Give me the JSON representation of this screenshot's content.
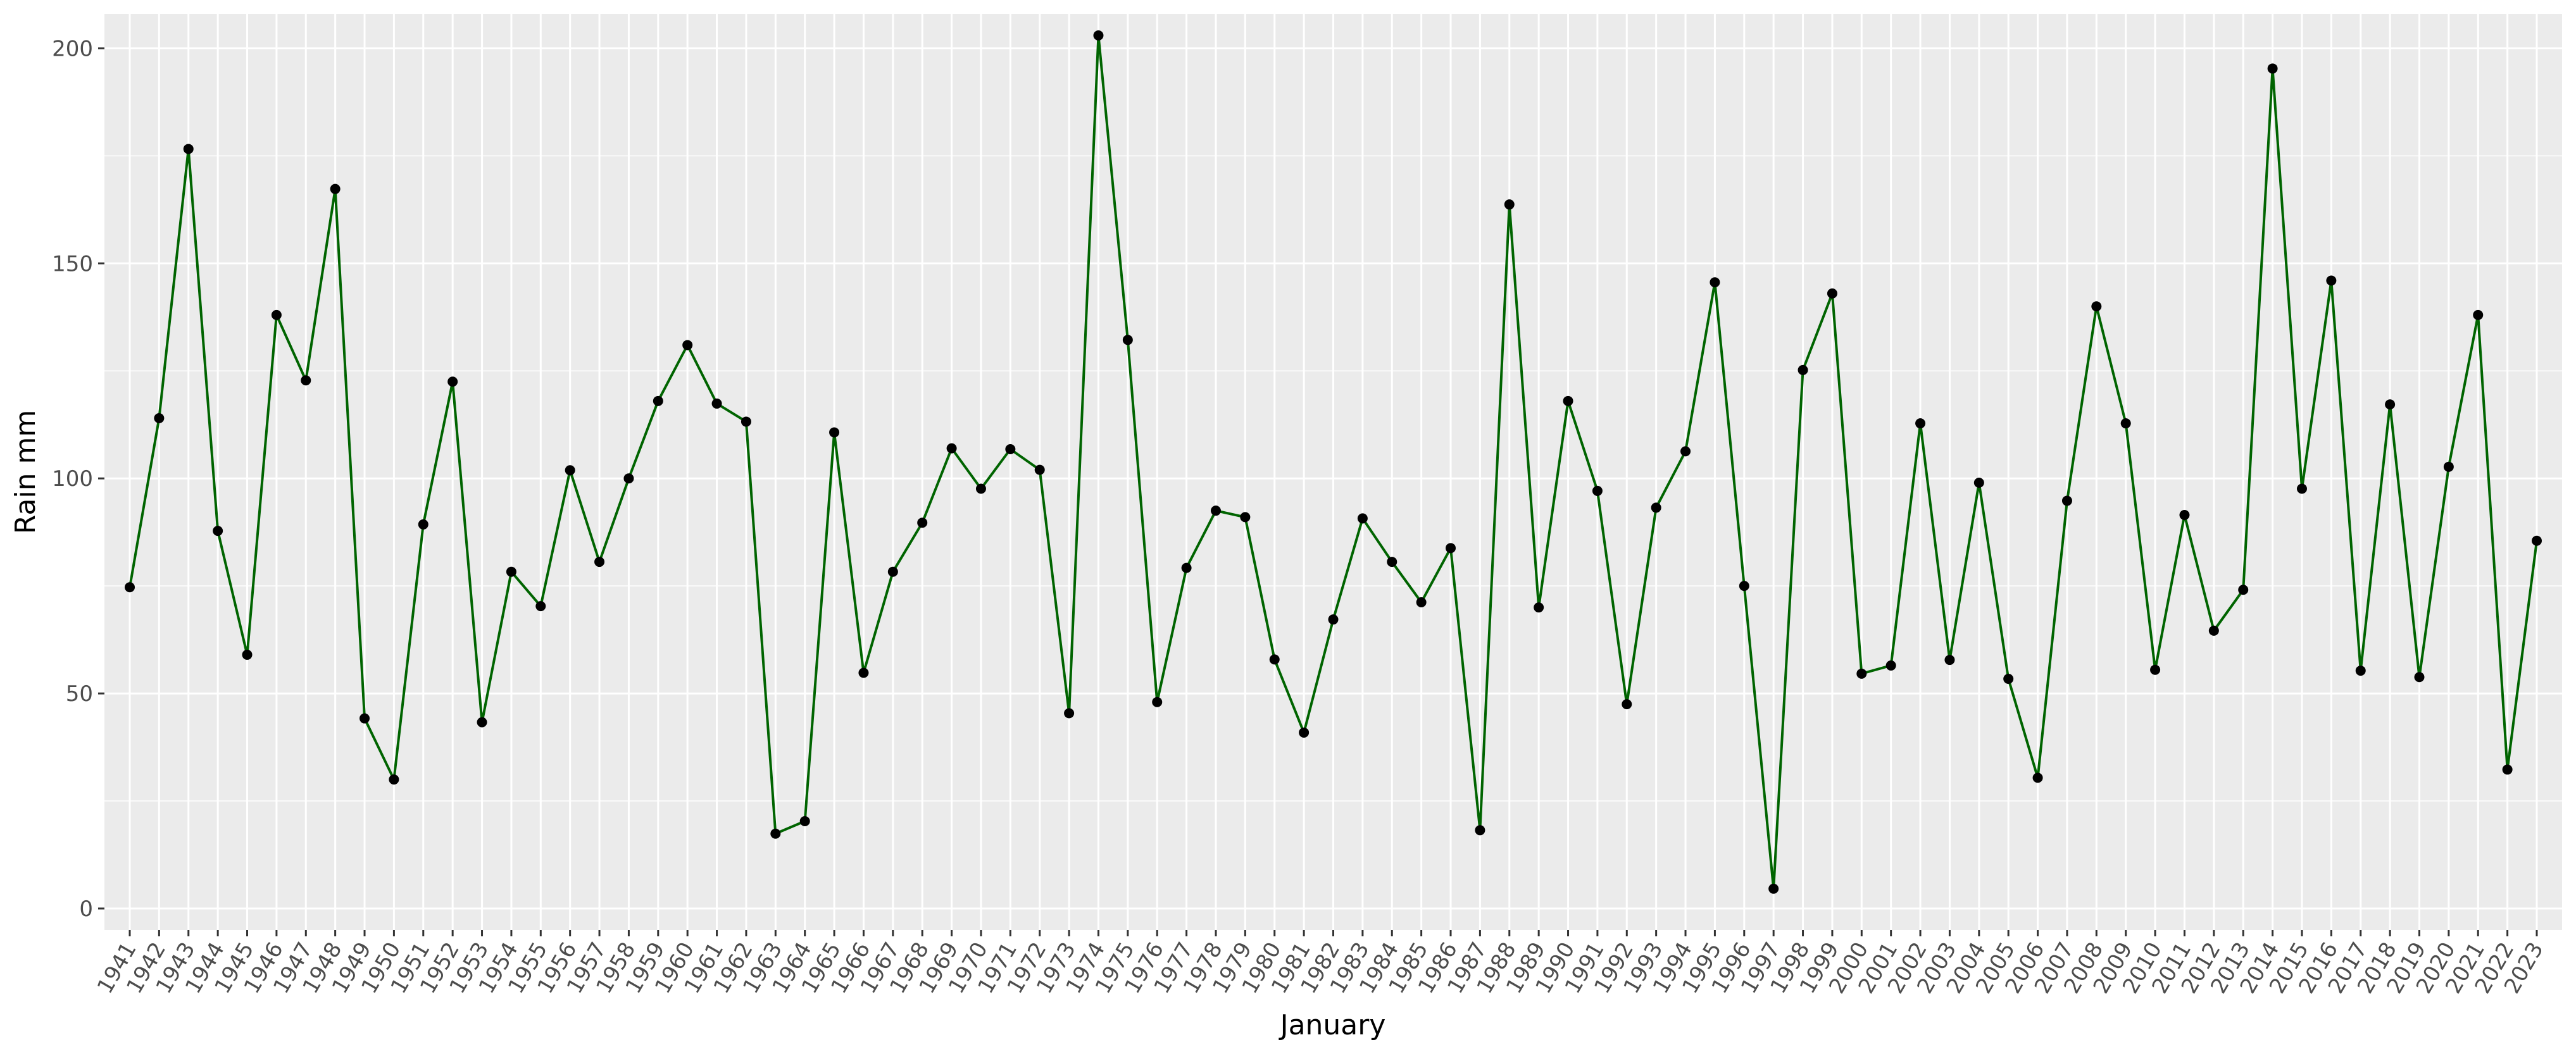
{
  "chart_data": {
    "type": "line",
    "title": "",
    "xlabel": "January",
    "ylabel": "Rain mm",
    "ylim": [
      -5,
      208
    ],
    "yticks": [
      0,
      50,
      100,
      150,
      200
    ],
    "grid": true,
    "legend": "none",
    "colors": {
      "panel": "#ebebeb",
      "grid": "#ffffff",
      "line": "#006400",
      "point": "#000000",
      "tick_text": "#4d4d4d",
      "tick_mark": "#333333"
    },
    "categories": [
      "1941",
      "1942",
      "1943",
      "1944",
      "1945",
      "1946",
      "1947",
      "1948",
      "1949",
      "1950",
      "1951",
      "1952",
      "1953",
      "1954",
      "1955",
      "1956",
      "1957",
      "1958",
      "1959",
      "1960",
      "1961",
      "1962",
      "1963",
      "1964",
      "1965",
      "1966",
      "1967",
      "1968",
      "1969",
      "1970",
      "1971",
      "1972",
      "1973",
      "1974",
      "1975",
      "1976",
      "1977",
      "1978",
      "1979",
      "1980",
      "1981",
      "1982",
      "1983",
      "1984",
      "1985",
      "1986",
      "1987",
      "1988",
      "1989",
      "1990",
      "1991",
      "1992",
      "1993",
      "1994",
      "1995",
      "1996",
      "1997",
      "1998",
      "1999",
      "2000",
      "2001",
      "2002",
      "2003",
      "2004",
      "2005",
      "2006",
      "2007",
      "2008",
      "2009",
      "2010",
      "2011",
      "2012",
      "2013",
      "2014",
      "2015",
      "2016",
      "2017",
      "2018",
      "2019",
      "2020",
      "2021",
      "2022",
      "2023"
    ],
    "values": [
      74.7,
      114,
      176.6,
      87.8,
      59,
      138,
      122.8,
      167.3,
      44.2,
      30,
      89.3,
      122.5,
      43.3,
      78.3,
      70.3,
      101.9,
      80.6,
      100,
      118,
      131,
      117.4,
      113.2,
      17.4,
      20.3,
      110.7,
      54.8,
      78.3,
      89.7,
      107,
      97.6,
      106.8,
      102,
      45.4,
      203,
      132.2,
      48,
      79.2,
      92.5,
      91,
      57.9,
      40.9,
      67.2,
      90.7,
      80.6,
      71.2,
      83.8,
      18.2,
      163.7,
      70,
      118,
      97.1,
      47.5,
      93.2,
      106.3,
      145.6,
      75,
      4.6,
      125.2,
      143,
      54.6,
      56.5,
      112.8,
      57.8,
      99,
      53.4,
      30.4,
      94.8,
      140,
      112.8,
      55.5,
      91.5,
      64.6,
      74.1,
      195.3,
      97.6,
      146,
      55.3,
      117.2,
      53.8,
      102.7,
      138,
      32.3,
      85.5
    ]
  }
}
